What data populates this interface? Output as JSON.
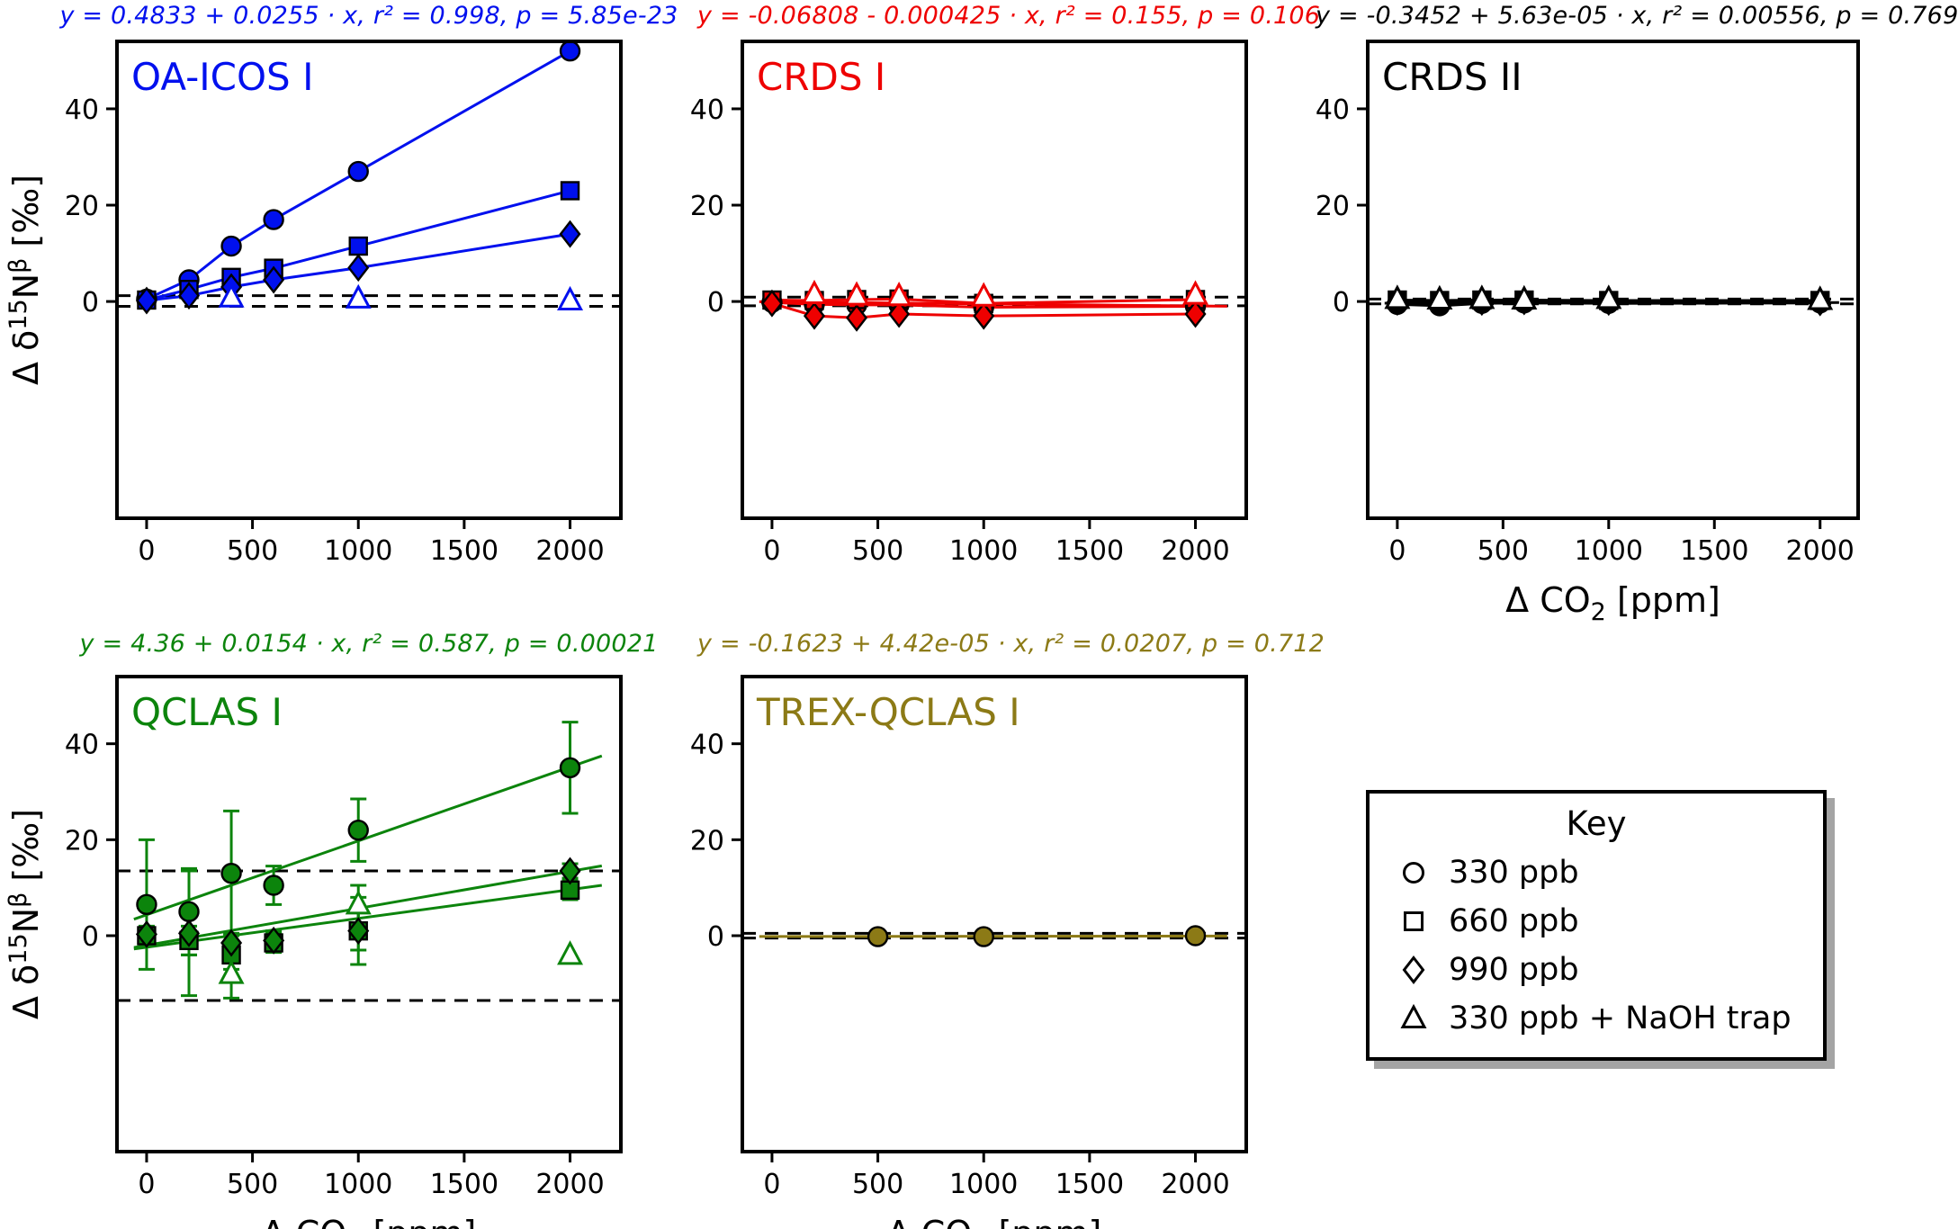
{
  "figure": {
    "ylabel": "Δ δ15Nβ [‰]",
    "ylabel_parts": [
      {
        "t": "Δ δ"
      },
      {
        "t": "15",
        "sup": true
      },
      {
        "t": "N"
      },
      {
        "t": "β",
        "sup": true
      },
      {
        "t": " [‰]"
      }
    ],
    "xlabel": "Δ CO2 [ppm]",
    "xlabel_parts": [
      {
        "t": "Δ CO"
      },
      {
        "t": "2",
        "sub": true
      },
      {
        "t": " [ppm]"
      }
    ],
    "legend": {
      "title": "Key",
      "items": [
        {
          "marker": "circle",
          "label": "330 ppb"
        },
        {
          "marker": "square",
          "label": "660 ppb"
        },
        {
          "marker": "diamond",
          "label": "990 ppb"
        },
        {
          "marker": "triangle",
          "label": "330 ppb + NaOH trap"
        }
      ]
    }
  },
  "chart_data": {
    "type": "scatter",
    "panels": [
      {
        "title": "OA-ICOS I",
        "color": "#0010ee",
        "equation": "y = 0.4833 + 0.0255 · x,  r² = 0.998,  p = 5.85e-23",
        "xlim": [
          -140,
          2240
        ],
        "ylim": [
          -45,
          54
        ],
        "xticks": [
          0,
          500,
          1000,
          1500,
          2000
        ],
        "yticks": [
          0,
          20,
          40
        ],
        "dashed_y": [
          1.2,
          -1.0
        ],
        "series": [
          {
            "name": "330 ppb",
            "marker": "circle",
            "connect": true,
            "x": [
              0,
              200,
              400,
              600,
              1000,
              2000
            ],
            "y": [
              0.5,
              4.5,
              11.5,
              17,
              27,
              52
            ]
          },
          {
            "name": "660 ppb",
            "marker": "square",
            "connect": true,
            "x": [
              0,
              200,
              400,
              600,
              1000,
              2000
            ],
            "y": [
              0.3,
              2.5,
              5,
              6.9,
              11.5,
              23
            ]
          },
          {
            "name": "990 ppb",
            "marker": "diamond",
            "connect": true,
            "x": [
              0,
              200,
              400,
              600,
              1000,
              2000
            ],
            "y": [
              0.2,
              1.2,
              3,
              4.5,
              7,
              14
            ]
          },
          {
            "name": "330 ppb + NaOH trap",
            "marker": "triangle",
            "open": true,
            "x": [
              400,
              1000,
              2000
            ],
            "y": [
              0.8,
              0.6,
              0.2
            ]
          }
        ]
      },
      {
        "title": "CRDS I",
        "color": "#ee0000",
        "equation": "y = -0.06808 - 0.000425 · x,  r² = 0.155,  p = 0.106",
        "xlim": [
          -140,
          2240
        ],
        "ylim": [
          -45,
          54
        ],
        "xticks": [
          0,
          500,
          1000,
          1500,
          2000
        ],
        "yticks": [
          0,
          20,
          40
        ],
        "dashed_y": [
          0.9,
          -0.9
        ],
        "fits": [
          {
            "intercept": -0.06808,
            "slope": -0.000425
          }
        ],
        "series": [
          {
            "name": "330 ppb",
            "marker": "circle",
            "connect": true,
            "x": [
              0,
              200,
              400,
              600,
              1000,
              2000
            ],
            "y": [
              -0.2,
              -0.6,
              -0.7,
              -0.7,
              -1.2,
              -1.0
            ]
          },
          {
            "name": "660 ppb",
            "marker": "square",
            "connect": true,
            "x": [
              0,
              200,
              400,
              600,
              1000,
              2000
            ],
            "y": [
              0.3,
              0.2,
              0.4,
              0.5,
              -0.4,
              0.4
            ]
          },
          {
            "name": "990 ppb",
            "marker": "diamond",
            "connect": true,
            "x": [
              0,
              200,
              400,
              600,
              1000,
              2000
            ],
            "y": [
              -0.4,
              -3.0,
              -3.4,
              -2.6,
              -3.0,
              -2.6
            ]
          },
          {
            "name": "330 ppb + NaOH trap",
            "marker": "triangle",
            "open": true,
            "x": [
              200,
              400,
              600,
              1000,
              2000
            ],
            "y": [
              1.5,
              1.2,
              1.1,
              1.0,
              1.4
            ]
          }
        ]
      },
      {
        "title": "CRDS II",
        "color": "#000000",
        "equation": "y = -0.3452 + 5.63e-05 · x,  r² = 0.00556,  p = 0.769",
        "xlim": [
          -140,
          2180
        ],
        "ylim": [
          -45,
          54
        ],
        "xticks": [
          0,
          500,
          1000,
          1500,
          2000
        ],
        "yticks": [
          0,
          20,
          40
        ],
        "dashed_y": [
          0.5,
          -0.5
        ],
        "fits": [
          {
            "intercept": -0.3452,
            "slope": 5.63e-05
          }
        ],
        "series": [
          {
            "name": "330 ppb",
            "marker": "circle",
            "connect": true,
            "x": [
              0,
              200,
              400,
              600,
              1000,
              2000
            ],
            "y": [
              -0.6,
              -0.9,
              -0.4,
              -0.3,
              -0.4,
              -0.3
            ]
          },
          {
            "name": "660 ppb",
            "marker": "square",
            "connect": true,
            "x": [
              0,
              200,
              400,
              600,
              1000,
              2000
            ],
            "y": [
              0.3,
              0.2,
              0.3,
              0.3,
              0.2,
              0.2
            ]
          },
          {
            "name": "990 ppb",
            "marker": "diamond",
            "connect": true,
            "x": [
              0,
              200,
              400,
              600,
              1000,
              2000
            ],
            "y": [
              -0.1,
              0.0,
              -0.1,
              0.0,
              -0.1,
              -0.2
            ]
          },
          {
            "name": "330 ppb + NaOH trap",
            "marker": "triangle",
            "open": true,
            "x": [
              0,
              200,
              400,
              600,
              1000,
              2000
            ],
            "y": [
              0.5,
              0.4,
              0.5,
              0.4,
              0.5,
              0.3
            ]
          }
        ]
      },
      {
        "title": "QCLAS I",
        "color": "#0c840c",
        "equation": "y = 4.36 + 0.0154 · x,  r² = 0.587,  p = 0.00021",
        "xlim": [
          -140,
          2240
        ],
        "ylim": [
          -45,
          54
        ],
        "xticks": [
          0,
          500,
          1000,
          1500,
          2000
        ],
        "yticks": [
          0,
          20,
          40
        ],
        "dashed_y": [
          13.5,
          -13.5
        ],
        "fits": [
          {
            "intercept": 4.36,
            "slope": 0.0154
          },
          {
            "intercept": -2.4,
            "slope": 0.006
          },
          {
            "intercept": -2.0,
            "slope": 0.0077
          }
        ],
        "series": [
          {
            "name": "330 ppb",
            "marker": "circle",
            "x": [
              0,
              200,
              400,
              600,
              1000,
              2000
            ],
            "y": [
              6.5,
              5,
              13,
              10.5,
              22,
              35
            ],
            "yerr": [
              13.5,
              9,
              13,
              4,
              6.5,
              9.5
            ]
          },
          {
            "name": "660 ppb",
            "marker": "square",
            "x": [
              0,
              200,
              400,
              600,
              1000,
              2000
            ],
            "y": [
              0,
              -1,
              -4,
              -1.5,
              1,
              9.5
            ],
            "yerr": [
              2,
              3,
              3,
              2,
              7,
              2
            ]
          },
          {
            "name": "990 ppb",
            "marker": "diamond",
            "x": [
              0,
              200,
              400,
              600,
              1000,
              2000
            ],
            "y": [
              0.3,
              0.5,
              -1.5,
              -1,
              1,
              13.5
            ],
            "yerr": [
              1.5,
              13,
              2,
              2,
              4,
              1.5
            ]
          },
          {
            "name": "330 ppb + NaOH trap",
            "marker": "triangle",
            "open": true,
            "x": [
              400,
              1000,
              2000
            ],
            "y": [
              -8,
              6.5,
              -4
            ],
            "yerr": [
              5,
              4,
              0
            ]
          }
        ]
      },
      {
        "title": "TREX-QCLAS I",
        "color": "#8c7a16",
        "equation": "y = -0.1623 + 4.42e-05 · x,  r² = 0.0207,  p = 0.712",
        "xlim": [
          -140,
          2240
        ],
        "ylim": [
          -45,
          54
        ],
        "xticks": [
          0,
          500,
          1000,
          1500,
          2000
        ],
        "yticks": [
          0,
          20,
          40
        ],
        "dashed_y": [
          0.5,
          -0.5
        ],
        "fits": [
          {
            "intercept": -0.1623,
            "slope": 4.42e-05
          }
        ],
        "series": [
          {
            "name": "330 ppb",
            "marker": "circle",
            "x": [
              500,
              1000,
              2000
            ],
            "y": [
              -0.2,
              -0.2,
              0.0
            ],
            "yerr": [
              0.7,
              0.7,
              0.7
            ]
          }
        ]
      }
    ]
  }
}
